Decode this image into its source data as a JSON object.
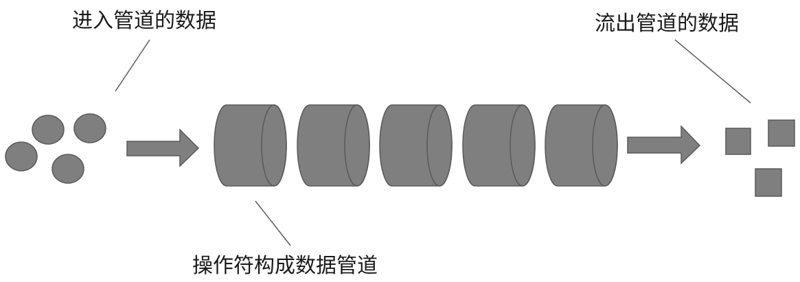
{
  "labels": {
    "input": "进入管道的数据",
    "output": "流出管道的数据",
    "pipeline": "操作符构成数据管道"
  },
  "colors": {
    "shape_fill": "#7f7f7f",
    "shape_stroke": "#595959",
    "leader_line": "#5a5a5a",
    "text": "#1a1a1a"
  },
  "input_items": {
    "count": 4,
    "shape": "circle"
  },
  "pipeline_operators": {
    "count": 5,
    "shape": "cylinder"
  },
  "output_items": {
    "count": 3,
    "shape": "square"
  }
}
